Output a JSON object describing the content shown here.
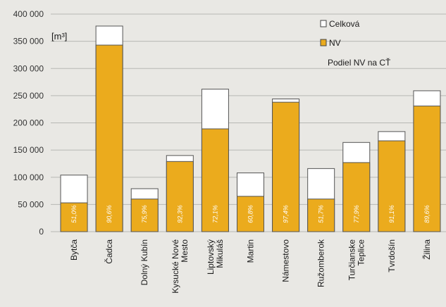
{
  "chart_data": {
    "type": "bar",
    "unit_label": "[m³]",
    "categories": [
      "Bytča",
      "Čadca",
      "Dolný Kubín",
      "Kysucké Nové Mesto",
      "Liptovský Mikuláš",
      "Martin",
      "Námestovo",
      "Ružomberok",
      "Turčianske Teplice",
      "Tvrdošín",
      "Žilina"
    ],
    "category_lines": [
      [
        "Bytča"
      ],
      [
        "Čadca"
      ],
      [
        "Dolný Kubín"
      ],
      [
        "Kysucké Nové",
        "Mesto"
      ],
      [
        "Liptovský",
        "Mikuláš"
      ],
      [
        "Martin"
      ],
      [
        "Námestovo"
      ],
      [
        "Ružomberok"
      ],
      [
        "Turčianske",
        "Teplice"
      ],
      [
        "Tvrdošín"
      ],
      [
        "Žilina"
      ]
    ],
    "series": [
      {
        "name": "Celková",
        "values": [
          104000,
          378000,
          79000,
          140000,
          262000,
          108000,
          244000,
          116000,
          164000,
          184000,
          259000
        ]
      },
      {
        "name": "NV",
        "values": [
          53000,
          343000,
          60000,
          129000,
          189000,
          65000,
          238000,
          60000,
          127000,
          167000,
          231000
        ]
      }
    ],
    "share_label": "Podiel NV na CŤ",
    "shares": [
      "51,0%",
      "90,6%",
      "75,9%",
      "92,3%",
      "72,1%",
      "60,8%",
      "97,4%",
      "51,7%",
      "77,9%",
      "91,1%",
      "89,6%"
    ],
    "yticks": [
      "0",
      "50 000",
      "100 000",
      "150 000",
      "200 000",
      "250 000",
      "300 000",
      "350 000",
      "400 000"
    ],
    "ylim": [
      0,
      400000
    ],
    "grid": true,
    "legend_position": "top-right",
    "colors": {
      "total": "#ffffff",
      "nv": "#ebab1d",
      "border": "#555555",
      "grid": "#b7b7b3"
    }
  }
}
